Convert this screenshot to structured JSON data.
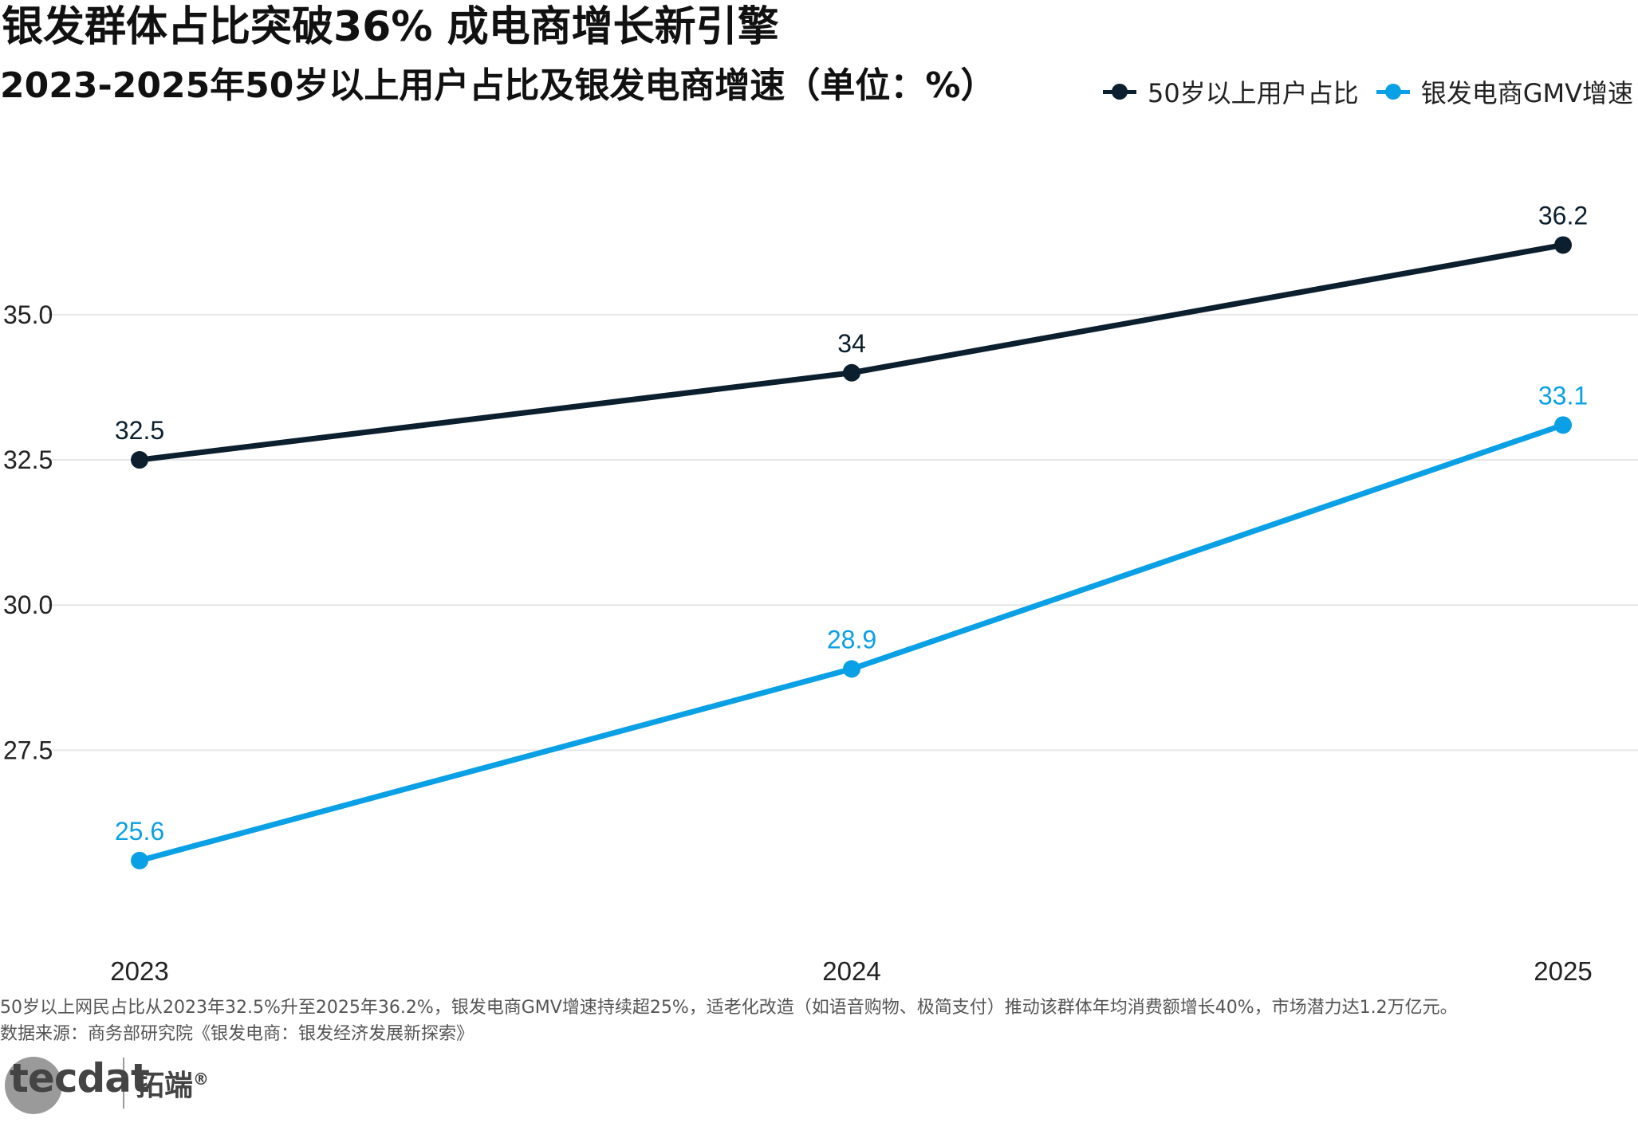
{
  "title": "银发群体占比突破36% 成电商增长新引擎",
  "subtitle": "2023-2025年50岁以上用户占比及银发电商增速（单位：%）",
  "legend": [
    {
      "label": "50岁以上用户占比",
      "color": "#0c1f2e"
    },
    {
      "label": "银发电商GMV增速",
      "color": "#0aa0e6"
    }
  ],
  "caption": {
    "note": "50岁以上网民占比从2023年32.5%升至2025年36.2%，银发电商GMV增速持续超25%，适老化改造（如语音购物、极简支付）推动该群体年均消费额增长40%，市场潜力达1.2万亿元。",
    "source": "数据来源：商务部研究院《银发电商：银发经济发展新探索》"
  },
  "logo": {
    "mark": "tecdat",
    "name": "拓端",
    "reg": "®"
  },
  "chart_data": {
    "type": "line",
    "x": [
      "2023",
      "2024",
      "2025"
    ],
    "series": [
      {
        "name": "50岁以上用户占比",
        "color": "#0c1f2e",
        "values": [
          32.5,
          34,
          36.2
        ],
        "labels": [
          "32.5",
          "34",
          "36.2"
        ]
      },
      {
        "name": "银发电商GMV增速",
        "color": "#0aa0e6",
        "values": [
          25.6,
          28.9,
          33.1
        ],
        "labels": [
          "25.6",
          "28.9",
          "33.1"
        ]
      }
    ],
    "yticks": [
      27.5,
      30.0,
      32.5,
      35.0
    ],
    "ytick_labels": [
      "27.5",
      "30.0",
      "32.5",
      "35.0"
    ],
    "ylim": [
      24.5,
      37.4
    ],
    "grid": true,
    "legend_position": "top-right"
  }
}
